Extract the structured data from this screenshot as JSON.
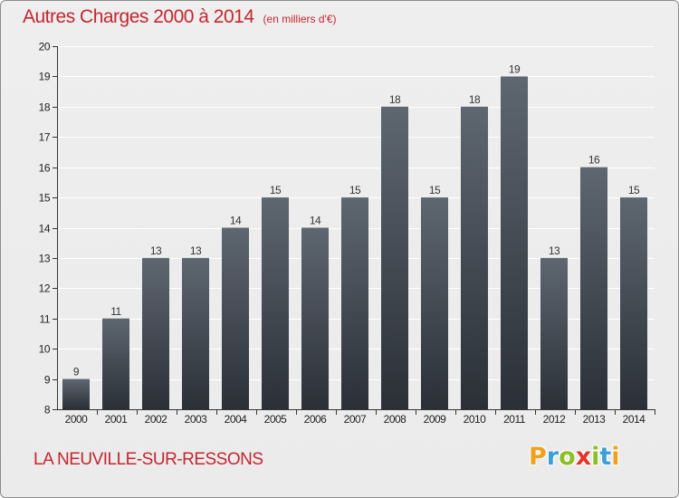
{
  "header": {
    "title": "Autres Charges 2000 à 2014",
    "subtitle": "(en milliers d'€)"
  },
  "footer": {
    "place": "LA NEUVILLE-SUR-RESSONS",
    "brand": "Proxiti",
    "brand_colors": [
      "#f0a01e",
      "#3aa1d8",
      "#8cbf26",
      "#e5352b",
      "#8cbf26",
      "#3aa1d8",
      "#f0a01e"
    ]
  },
  "colors": {
    "title": "#c4262e",
    "bar_top": "#5e6670",
    "bar_bottom": "#2b3037",
    "axis": "#333333",
    "grid": "#ffffff"
  },
  "chart_data": {
    "type": "bar",
    "title": "Autres Charges 2000 à 2014",
    "subtitle": "(en milliers d'€)",
    "categories": [
      "2000",
      "2001",
      "2002",
      "2003",
      "2004",
      "2005",
      "2006",
      "2007",
      "2008",
      "2009",
      "2010",
      "2011",
      "2012",
      "2013",
      "2014"
    ],
    "values": [
      9,
      11,
      13,
      13,
      14,
      15,
      14,
      15,
      18,
      15,
      18,
      19,
      13,
      16,
      15
    ],
    "ylim": [
      8,
      20
    ],
    "yticks": [
      8,
      9,
      10,
      11,
      12,
      13,
      14,
      15,
      16,
      17,
      18,
      19,
      20
    ],
    "grid": true,
    "legend": "none"
  }
}
